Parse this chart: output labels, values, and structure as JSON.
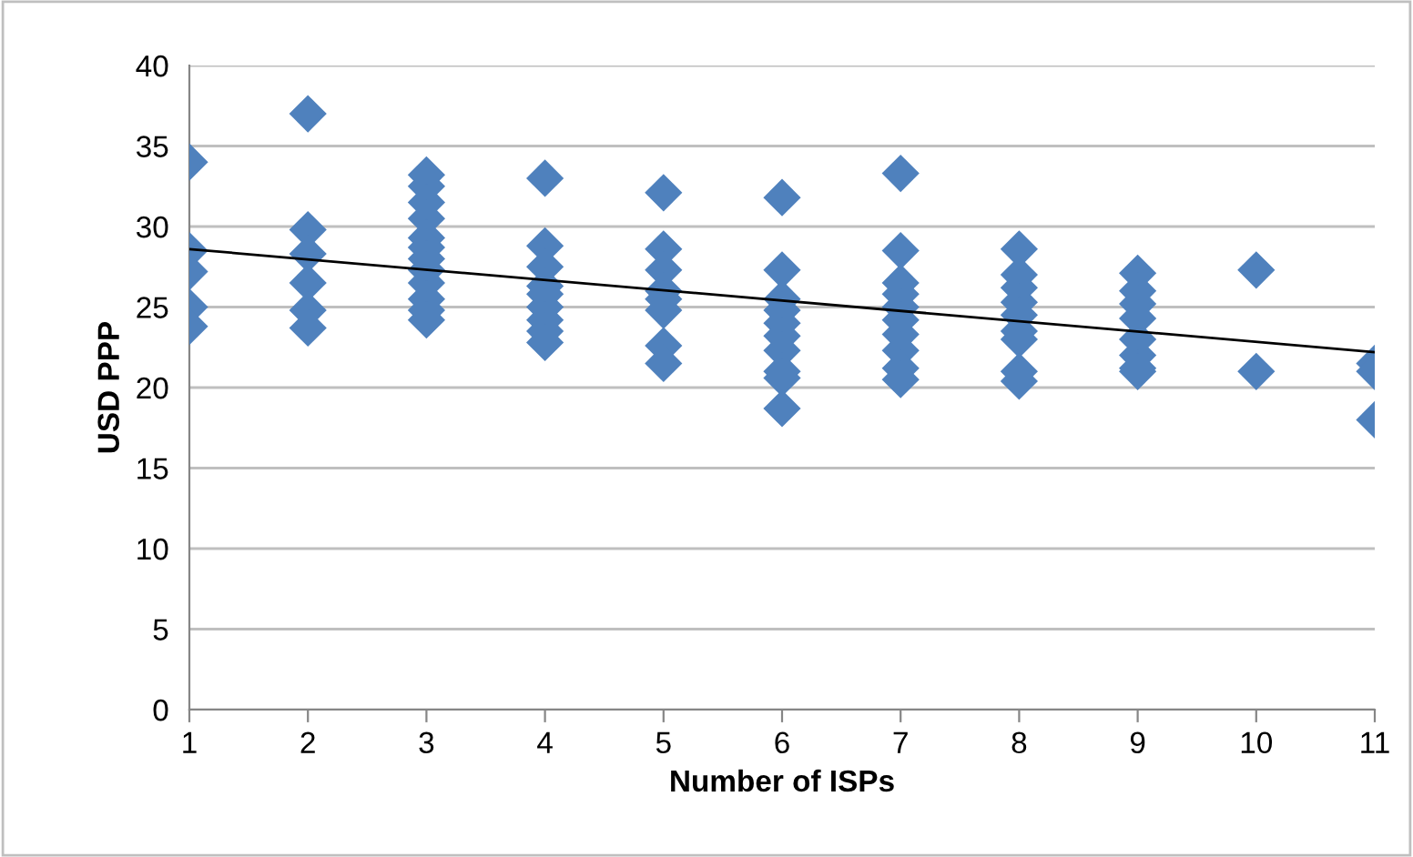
{
  "chart_data": {
    "type": "scatter",
    "xlabel": "Number of ISPs",
    "ylabel": "USD PPP",
    "xlim": [
      1,
      11
    ],
    "ylim": [
      0,
      40
    ],
    "xticks": [
      1,
      2,
      3,
      4,
      5,
      6,
      7,
      8,
      9,
      10,
      11
    ],
    "yticks": [
      0,
      5,
      10,
      15,
      20,
      25,
      30,
      35,
      40
    ],
    "grid": "y",
    "series": [
      {
        "marker": "diamond",
        "color": "#4f81bd",
        "x": [
          1,
          1,
          1,
          1,
          1,
          2,
          2,
          2,
          2,
          2,
          2,
          3,
          3,
          3,
          3,
          3,
          3,
          3,
          3,
          3,
          3,
          3,
          3,
          4,
          4,
          4,
          4,
          4,
          4,
          4,
          4,
          4,
          5,
          5,
          5,
          5,
          5,
          5,
          5,
          5,
          6,
          6,
          6,
          6,
          6,
          6,
          6,
          6,
          6,
          6,
          7,
          7,
          7,
          7,
          7,
          7,
          7,
          7,
          7,
          7,
          8,
          8,
          8,
          8,
          8,
          8,
          8,
          8,
          8,
          9,
          9,
          9,
          9,
          9,
          9,
          9,
          9,
          10,
          10,
          11,
          11,
          11
        ],
        "values": [
          34,
          28.5,
          27.2,
          25,
          23.8,
          37,
          29.8,
          28.3,
          26.5,
          24.8,
          23.7,
          33.2,
          32.5,
          31.5,
          30.5,
          29.3,
          28.7,
          28,
          27.3,
          26.5,
          25.5,
          24.8,
          24.2,
          33,
          28.8,
          27.5,
          26.3,
          25.8,
          25,
          24.2,
          23.5,
          22.8,
          32.1,
          28.6,
          27.3,
          26,
          25.5,
          24.8,
          22.6,
          21.5,
          31.8,
          27.3,
          25.5,
          24.8,
          24,
          23.2,
          22.3,
          21,
          20.6,
          18.7,
          33.3,
          28.5,
          26.5,
          25.8,
          25,
          24.2,
          23.3,
          22.3,
          21.2,
          20.5,
          28.6,
          27,
          26.2,
          25.3,
          24.5,
          23.5,
          23,
          21,
          20.4,
          27.1,
          26,
          25.2,
          24.3,
          23,
          22,
          21.2,
          21,
          27.3,
          21,
          21.5,
          21,
          18
        ]
      },
      {
        "type": "line",
        "color": "#000000",
        "x": [
          1,
          11
        ],
        "values": [
          28.6,
          22.2
        ]
      }
    ]
  }
}
